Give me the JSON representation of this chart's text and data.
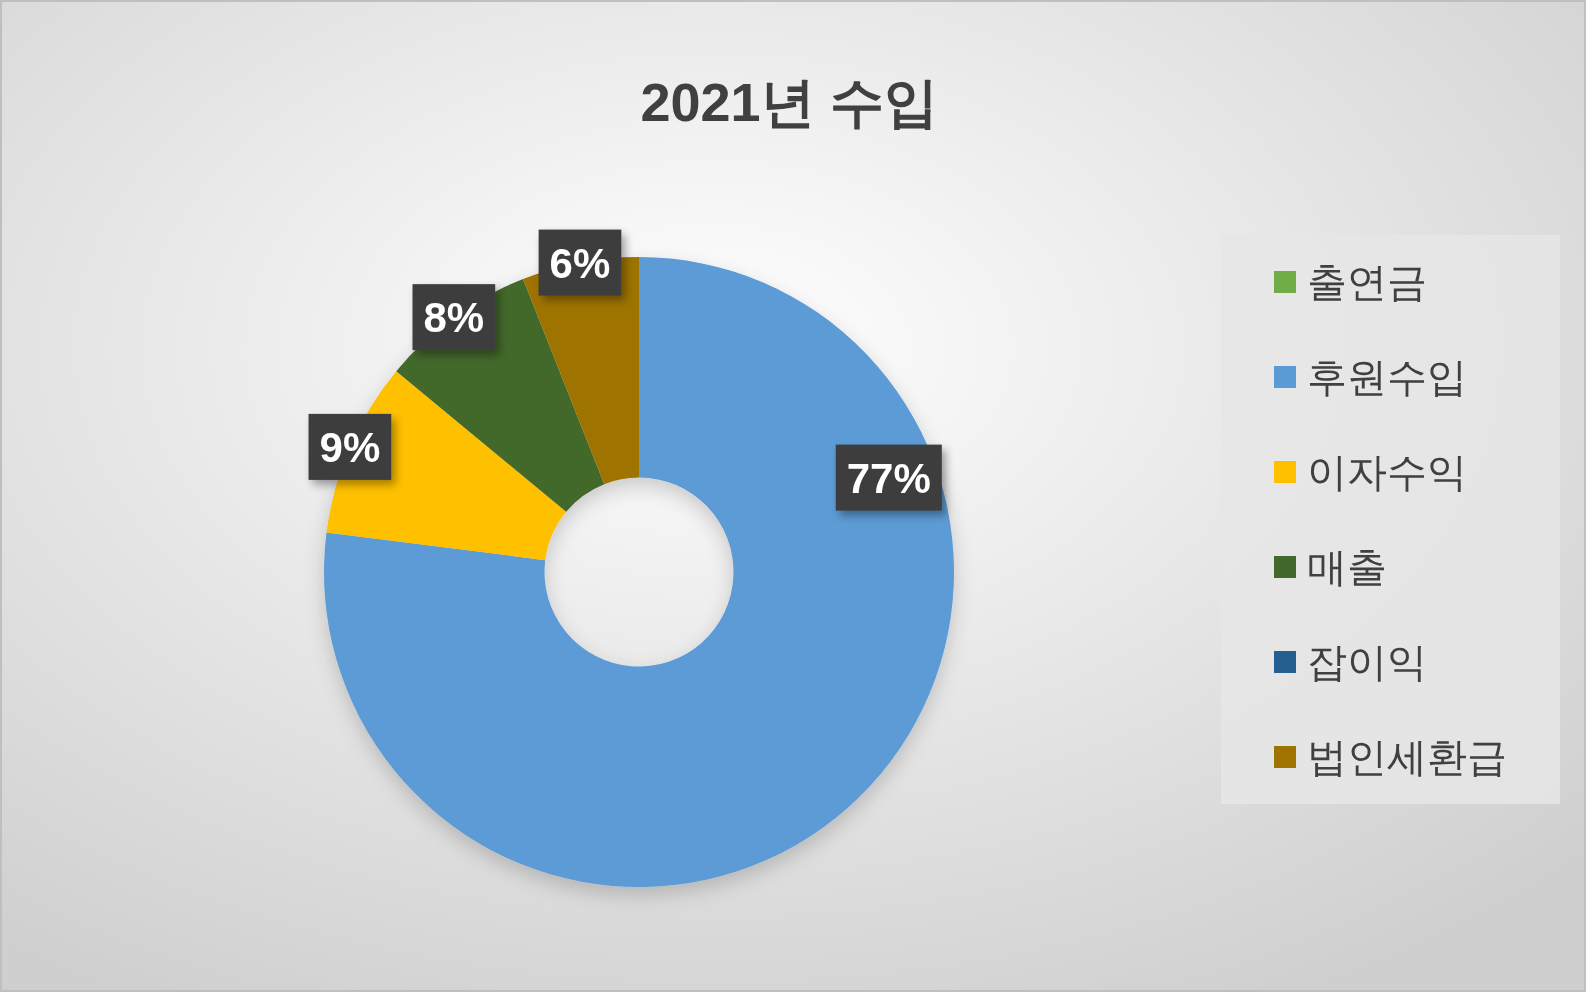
{
  "chart_data": {
    "type": "donut",
    "title": "2021년 수입",
    "categories": [
      "출연금",
      "후원수입",
      "이자수익",
      "매출",
      "잡이익",
      "법인세환급"
    ],
    "values": [
      0,
      77,
      9,
      8,
      0,
      6
    ],
    "colors": [
      "#70ad47",
      "#5b9bd5",
      "#ffc000",
      "#43682b",
      "#255e91",
      "#9e7300"
    ],
    "value_labels": [
      null,
      "77%",
      "9%",
      "8%",
      null,
      "6%"
    ],
    "legend": "right"
  }
}
